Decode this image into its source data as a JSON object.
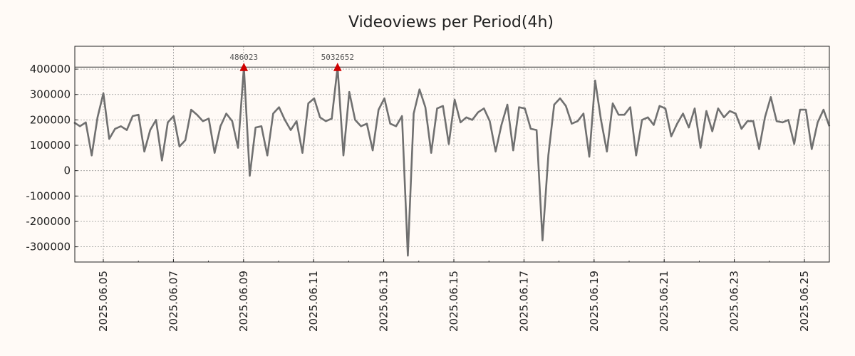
{
  "chart_data": {
    "type": "line",
    "title": "Videoviews per Period(4h)",
    "xlabel": "",
    "ylabel": "",
    "x_range": [
      "2025.06.04",
      "2025.06.25"
    ],
    "ylim": [
      -360000,
      490000
    ],
    "y_ticks": [
      400000,
      300000,
      200000,
      100000,
      0,
      -100000,
      -200000,
      -300000
    ],
    "y_tick_labels": [
      "400000",
      "300000",
      "200000",
      "100000",
      "0",
      "-100000",
      "-200000",
      "-300000"
    ],
    "x_tick_labels": [
      "2025.06.05",
      "2025.06.07",
      "2025.06.09",
      "2025.06.11",
      "2025.06.13",
      "2025.06.15",
      "2025.06.17",
      "2025.06.19",
      "2025.06.21",
      "2025.06.23",
      "2025.06.25"
    ],
    "reference_line": 408000,
    "grid": true,
    "series": [
      {
        "color": "#707070",
        "values": [
          190000,
          175000,
          190000,
          60000,
          210000,
          305000,
          125000,
          165000,
          175000,
          160000,
          215000,
          220000,
          75000,
          160000,
          200000,
          40000,
          190000,
          215000,
          95000,
          120000,
          240000,
          220000,
          195000,
          205000,
          70000,
          175000,
          225000,
          195000,
          90000,
          408000,
          -20000,
          170000,
          175000,
          60000,
          225000,
          250000,
          200000,
          160000,
          195000,
          70000,
          265000,
          285000,
          210000,
          195000,
          205000,
          408000,
          60000,
          310000,
          200000,
          175000,
          185000,
          80000,
          240000,
          285000,
          185000,
          175000,
          215000,
          -335000,
          225000,
          320000,
          250000,
          70000,
          245000,
          255000,
          105000,
          280000,
          190000,
          210000,
          200000,
          230000,
          245000,
          195000,
          75000,
          180000,
          260000,
          80000,
          250000,
          245000,
          165000,
          160000,
          -275000,
          60000,
          260000,
          285000,
          255000,
          185000,
          195000,
          225000,
          55000,
          355000,
          200000,
          75000,
          265000,
          220000,
          220000,
          250000,
          60000,
          200000,
          210000,
          180000,
          255000,
          245000,
          135000,
          185000,
          225000,
          170000,
          245000,
          90000,
          235000,
          155000,
          245000,
          210000,
          235000,
          225000,
          165000,
          195000,
          195000,
          85000,
          210000,
          290000,
          195000,
          190000,
          200000,
          105000,
          240000,
          240000,
          85000,
          190000,
          240000,
          175000
        ]
      }
    ],
    "annotations": [
      {
        "text": "486023",
        "index": 29,
        "y": 408000,
        "marker_color": "#d00000"
      },
      {
        "text": "5032652",
        "index": 45,
        "y": 408000,
        "marker_color": "#d00000"
      }
    ]
  }
}
